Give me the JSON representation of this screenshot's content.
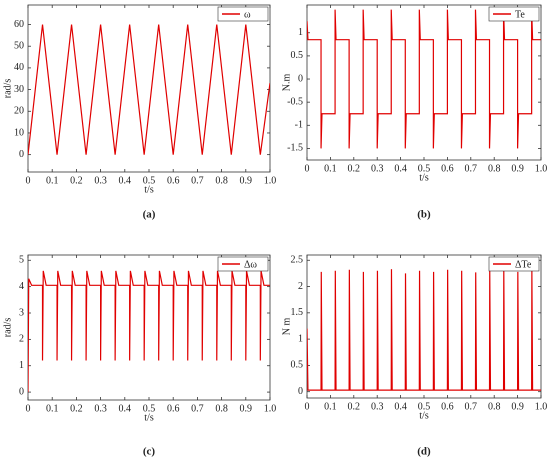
{
  "chart_data": [
    {
      "type": "line",
      "caption": "(a)",
      "xlabel": "t/s",
      "ylabel": "rad/s",
      "x": [
        0,
        0.06,
        0.12,
        0.18,
        0.24,
        0.3,
        0.36,
        0.42,
        0.48,
        0.54,
        0.6,
        0.66,
        0.72,
        0.78,
        0.84,
        0.9,
        0.96,
        1.0
      ],
      "series": [
        {
          "name": "ω",
          "color": "#e00000",
          "values": [
            0,
            60,
            0,
            60,
            0,
            60,
            0,
            60,
            0,
            60,
            0,
            60,
            0,
            60,
            0,
            60,
            0,
            33
          ]
        }
      ],
      "xlim": [
        0,
        1
      ],
      "xticks": [
        0,
        0.1,
        0.2,
        0.3,
        0.4,
        0.5,
        0.6,
        0.7,
        0.8,
        0.9,
        {
          "value": 1,
          "label": "1.0"
        }
      ],
      "ylim": [
        -8,
        69
      ],
      "yticks": [
        0,
        10,
        20,
        30,
        40,
        50,
        60
      ],
      "legend": "upper right"
    },
    {
      "type": "line",
      "caption": "(b)",
      "xlabel": "t/s",
      "ylabel": "N.m",
      "x": [
        0,
        0.004,
        0.06,
        0.06,
        0.064,
        0.12,
        0.12,
        0.124,
        0.18,
        0.18,
        0.184,
        0.24,
        0.24,
        0.244,
        0.3,
        0.3,
        0.304,
        0.36,
        0.36,
        0.364,
        0.42,
        0.42,
        0.424,
        0.48,
        0.48,
        0.484,
        0.54,
        0.54,
        0.544,
        0.6,
        0.6,
        0.604,
        0.66,
        0.66,
        0.664,
        0.72,
        0.72,
        0.724,
        0.78,
        0.78,
        0.784,
        0.84,
        0.84,
        0.844,
        0.9,
        0.9,
        0.904,
        0.96,
        0.96,
        0.964,
        1.0
      ],
      "series": [
        {
          "name": "Te",
          "color": "#e00000",
          "values": [
            1.25,
            0.85,
            0.85,
            -1.5,
            -0.75,
            -0.75,
            1.5,
            0.85,
            0.85,
            -1.5,
            -0.75,
            -0.75,
            1.5,
            0.85,
            0.85,
            -1.5,
            -0.75,
            -0.75,
            1.5,
            0.85,
            0.85,
            -1.5,
            -0.75,
            -0.75,
            1.5,
            0.85,
            0.85,
            -1.5,
            -0.75,
            -0.75,
            1.5,
            0.85,
            0.85,
            -1.5,
            -0.75,
            -0.75,
            1.5,
            0.85,
            0.85,
            -1.5,
            -0.75,
            -0.75,
            1.5,
            0.85,
            0.85,
            -1.5,
            -0.75,
            -0.75,
            1.5,
            0.85,
            0.85
          ]
        }
      ],
      "xlim": [
        0,
        1
      ],
      "xticks": [
        0,
        0.1,
        0.2,
        0.3,
        0.4,
        0.5,
        0.6,
        0.7,
        0.8,
        0.9,
        {
          "value": 1,
          "label": "1.0"
        }
      ],
      "ylim": [
        -1.75,
        1.6
      ],
      "yticks": [
        -1.5,
        -1,
        -0.5,
        0,
        0.5,
        1
      ],
      "legend": "upper right"
    },
    {
      "type": "line",
      "caption": "(c)",
      "xlabel": "t/s",
      "ylabel": "rad/s",
      "x": [
        0,
        0.003,
        0.015,
        0.06,
        0.06,
        0.063,
        0.075,
        0.12,
        0.12,
        0.123,
        0.135,
        0.18,
        0.18,
        0.183,
        0.195,
        0.24,
        0.24,
        0.243,
        0.255,
        0.3,
        0.3,
        0.303,
        0.315,
        0.36,
        0.36,
        0.363,
        0.375,
        0.42,
        0.42,
        0.423,
        0.435,
        0.48,
        0.48,
        0.483,
        0.495,
        0.54,
        0.54,
        0.543,
        0.555,
        0.6,
        0.6,
        0.603,
        0.615,
        0.66,
        0.66,
        0.663,
        0.675,
        0.72,
        0.72,
        0.723,
        0.735,
        0.78,
        0.78,
        0.783,
        0.795,
        0.84,
        0.84,
        0.843,
        0.855,
        0.9,
        0.9,
        0.903,
        0.915,
        0.96,
        0.96,
        0.963,
        0.975,
        1.0
      ],
      "series": [
        {
          "name": "Δω",
          "color": "#e00000",
          "values": [
            0,
            4.3,
            4.05,
            4.05,
            1.2,
            4.6,
            4.05,
            4.05,
            1.2,
            4.6,
            4.05,
            4.05,
            1.2,
            4.6,
            4.05,
            4.05,
            1.2,
            4.6,
            4.05,
            4.05,
            1.2,
            4.6,
            4.05,
            4.05,
            1.2,
            4.6,
            4.05,
            4.05,
            1.2,
            4.6,
            4.05,
            4.05,
            1.2,
            4.6,
            4.05,
            4.05,
            1.2,
            4.6,
            4.05,
            4.05,
            1.2,
            4.6,
            4.05,
            4.05,
            1.2,
            4.6,
            4.05,
            4.05,
            1.2,
            4.6,
            4.05,
            4.05,
            1.2,
            4.6,
            4.05,
            4.05,
            1.2,
            4.6,
            4.05,
            4.05,
            1.2,
            4.6,
            4.05,
            4.05,
            1.2,
            4.6,
            4.05,
            4.05
          ]
        }
      ],
      "xlim": [
        0,
        1
      ],
      "xticks": [
        0,
        0.1,
        0.2,
        0.3,
        0.4,
        0.5,
        0.6,
        0.7,
        0.8,
        0.9,
        {
          "value": 1,
          "label": "1.0"
        }
      ],
      "ylim": [
        -0.3,
        5.2
      ],
      "yticks": [
        0,
        1,
        2,
        3,
        4,
        5
      ],
      "legend": "upper right"
    },
    {
      "type": "line",
      "caption": "(d)",
      "xlabel": "t/s",
      "ylabel": "N m",
      "x": [
        0,
        0.004,
        0.06,
        0.061,
        0.064,
        0.12,
        0.121,
        0.124,
        0.18,
        0.181,
        0.184,
        0.24,
        0.241,
        0.244,
        0.3,
        0.301,
        0.304,
        0.36,
        0.361,
        0.364,
        0.42,
        0.421,
        0.424,
        0.48,
        0.481,
        0.484,
        0.54,
        0.541,
        0.544,
        0.6,
        0.601,
        0.604,
        0.66,
        0.661,
        0.664,
        0.72,
        0.721,
        0.724,
        0.78,
        0.781,
        0.784,
        0.84,
        0.841,
        0.844,
        0.9,
        0.901,
        0.904,
        0.96,
        0.961,
        0.964,
        1.0
      ],
      "series": [
        {
          "name": "ΔTe",
          "color": "#e00000",
          "values": [
            1.2,
            0.03,
            0.03,
            2.28,
            0.03,
            0.03,
            2.3,
            0.03,
            0.03,
            2.32,
            0.03,
            0.03,
            2.28,
            0.03,
            0.03,
            2.3,
            0.03,
            0.03,
            2.33,
            0.03,
            0.03,
            2.25,
            0.03,
            0.03,
            2.3,
            0.03,
            0.03,
            2.28,
            0.03,
            0.03,
            2.32,
            0.03,
            0.03,
            2.3,
            0.03,
            0.03,
            2.27,
            0.03,
            0.03,
            2.3,
            0.03,
            0.03,
            2.33,
            0.03,
            0.03,
            2.28,
            0.03,
            0.03,
            2.3,
            0.03,
            0.03
          ]
        }
      ],
      "xlim": [
        0,
        1
      ],
      "xticks": [
        0,
        0.1,
        0.2,
        0.3,
        0.4,
        0.5,
        0.6,
        0.7,
        0.8,
        0.9,
        {
          "value": 1,
          "label": "1.0"
        }
      ],
      "ylim": [
        -0.12,
        2.6
      ],
      "yticks": [
        0,
        0.5,
        1,
        1.5,
        2,
        2.5
      ],
      "legend": "upper right"
    }
  ]
}
